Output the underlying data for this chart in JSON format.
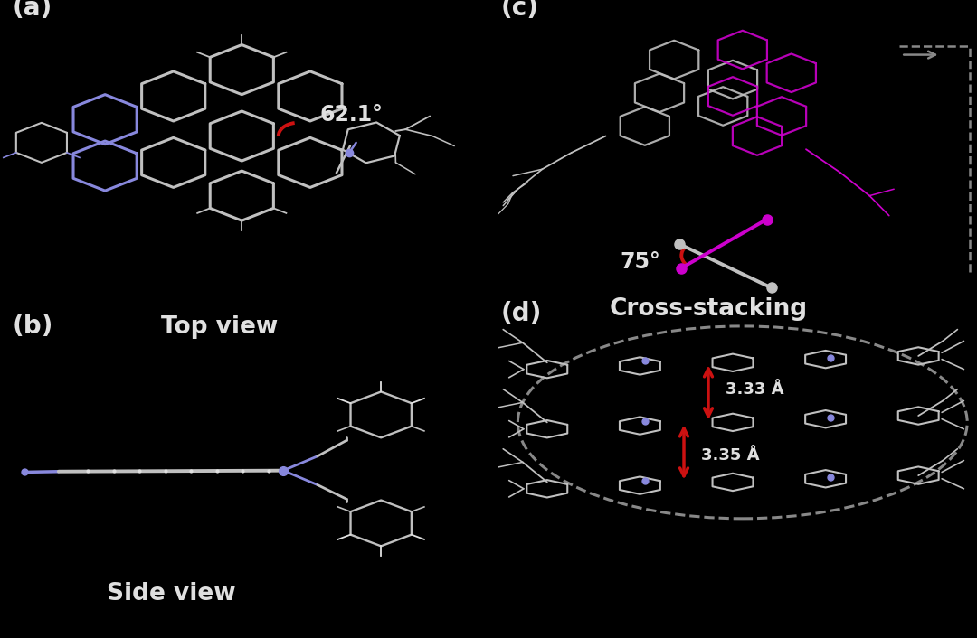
{
  "background_color": "#000000",
  "text_color": "#ffffff",
  "panel_labels": [
    "(a)",
    "(b)",
    "(c)",
    "(d)"
  ],
  "panel_label_fontsize": 20,
  "title_a": "Top view",
  "title_b": "Side view",
  "title_c": "Cross-stacking",
  "angle_a": "62.1°",
  "angle_c": "75°",
  "dist1": "3.33 Å",
  "dist2": "3.35 Å",
  "gc": "#c0c0c0",
  "gc2": "#909090",
  "bc": "#8888dd",
  "pc": "#cc00cc",
  "red": "#cc1111",
  "dash": "#888888",
  "white": "#e0e0e0"
}
